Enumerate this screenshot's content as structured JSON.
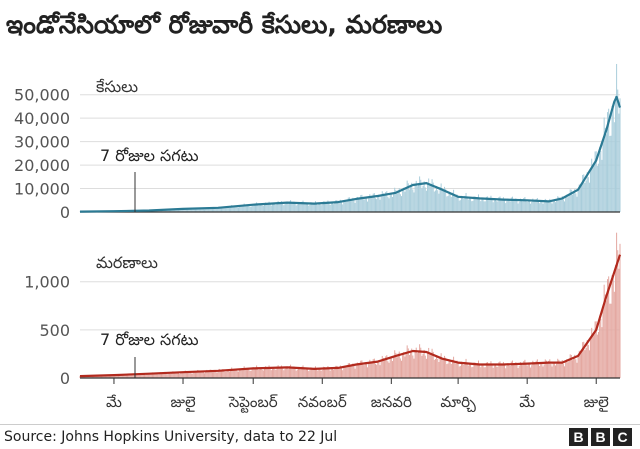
{
  "title": "ఇండోనేసియాలో రోజువారీ కేసులు, మరణాలు",
  "source": "Source: Johns Hopkins University, data to 22 Jul",
  "logo": "BBC",
  "colors": {
    "cases_line": "#2b7a94",
    "cases_bars": "#a9cddb",
    "deaths_line": "#b22a1e",
    "deaths_bars": "#e4a7a0",
    "grid": "#dddddd",
    "axis": "#333333"
  },
  "chart_data": [
    {
      "type": "line",
      "title": "కేసులు",
      "annotation": "7 రోజుల సగటు",
      "series": [
        {
          "name": "7 రోజుల సగటు",
          "style": "line with daily bars"
        }
      ],
      "x_ticks": [
        "మే",
        "జులై",
        "సెప్టెంబర్",
        "నవంబర్",
        "జనవరి",
        "మార్చి",
        "మే",
        "జులై"
      ],
      "y_ticks": [
        "0",
        "10,000",
        "20,000",
        "30,000",
        "40,000",
        "50,000"
      ],
      "ylim": [
        0,
        52000
      ],
      "x_range": [
        "2020-04-01",
        "2021-07-22"
      ],
      "points": [
        [
          "2020-04-01",
          150
        ],
        [
          "2020-05-01",
          350
        ],
        [
          "2020-06-01",
          650
        ],
        [
          "2020-07-01",
          1300
        ],
        [
          "2020-08-01",
          1800
        ],
        [
          "2020-09-01",
          3100
        ],
        [
          "2020-10-01",
          4000
        ],
        [
          "2020-10-25",
          3600
        ],
        [
          "2020-11-15",
          4200
        ],
        [
          "2020-12-01",
          5600
        ],
        [
          "2020-12-20",
          6800
        ],
        [
          "2021-01-05",
          8200
        ],
        [
          "2021-01-20",
          11500
        ],
        [
          "2021-02-01",
          12300
        ],
        [
          "2021-02-15",
          9500
        ],
        [
          "2021-03-01",
          6500
        ],
        [
          "2021-03-20",
          5800
        ],
        [
          "2021-04-10",
          5300
        ],
        [
          "2021-05-01",
          5000
        ],
        [
          "2021-05-20",
          4500
        ],
        [
          "2021-06-01",
          5800
        ],
        [
          "2021-06-15",
          9500
        ],
        [
          "2021-07-01",
          22000
        ],
        [
          "2021-07-10",
          35000
        ],
        [
          "2021-07-17",
          47000
        ],
        [
          "2021-07-19",
          49000
        ],
        [
          "2021-07-22",
          44500
        ]
      ]
    },
    {
      "type": "line",
      "title": "మరణాలు",
      "annotation": "7 రోజుల సగటు",
      "series": [
        {
          "name": "7 రోజుల సగటు",
          "style": "line with daily bars"
        }
      ],
      "x_ticks": [
        "మే",
        "జులై",
        "సెప్టెంబర్",
        "నవంబర్",
        "జనవరి",
        "మార్చి",
        "మే",
        "జులై"
      ],
      "y_ticks": [
        "0",
        "500",
        "1,000"
      ],
      "ylim": [
        0,
        1350
      ],
      "x_range": [
        "2020-04-01",
        "2021-07-22"
      ],
      "points": [
        [
          "2020-04-01",
          20
        ],
        [
          "2020-05-01",
          30
        ],
        [
          "2020-06-01",
          45
        ],
        [
          "2020-07-01",
          60
        ],
        [
          "2020-08-01",
          75
        ],
        [
          "2020-09-01",
          100
        ],
        [
          "2020-10-01",
          110
        ],
        [
          "2020-10-25",
          95
        ],
        [
          "2020-11-15",
          105
        ],
        [
          "2020-12-01",
          140
        ],
        [
          "2020-12-20",
          170
        ],
        [
          "2021-01-05",
          230
        ],
        [
          "2021-01-20",
          280
        ],
        [
          "2021-02-01",
          270
        ],
        [
          "2021-02-15",
          200
        ],
        [
          "2021-03-01",
          160
        ],
        [
          "2021-03-20",
          140
        ],
        [
          "2021-04-10",
          140
        ],
        [
          "2021-05-01",
          150
        ],
        [
          "2021-05-20",
          160
        ],
        [
          "2021-06-01",
          160
        ],
        [
          "2021-06-15",
          230
        ],
        [
          "2021-07-01",
          500
        ],
        [
          "2021-07-10",
          850
        ],
        [
          "2021-07-17",
          1100
        ],
        [
          "2021-07-22",
          1280
        ]
      ]
    }
  ]
}
